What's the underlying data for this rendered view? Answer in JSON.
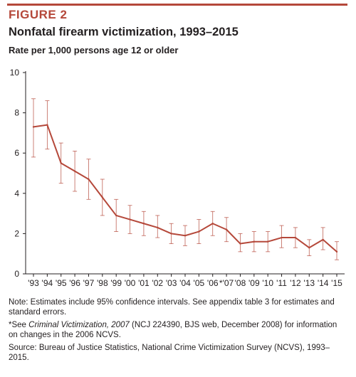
{
  "figure": {
    "label": "FIGURE 2",
    "title": "Nonfatal firearm victimization, 1993–2015",
    "subtitle": "Rate per 1,000 persons age 12 or older"
  },
  "notes": {
    "note": "Note: Estimates include 95% confidence intervals. See appendix table 3 for estimates and standard errors.",
    "see_prefix": "*See ",
    "see_title": "Criminal Victimization, 2007",
    "see_suffix": " (NCJ 224390, BJS web, December 2008) for information on changes in the 2006 NCVS.",
    "source": "Source: Bureau of Justice Statistics, National Crime Victimization Survey (NCVS), 1993–2015."
  },
  "colors": {
    "accent": "#b5483a",
    "series": "#b5483a",
    "axis": "#231f20"
  },
  "chart_data": {
    "type": "line",
    "title": "Nonfatal firearm victimization, 1993–2015",
    "ylabel": "Rate per 1,000 persons age 12 or older",
    "xlabel": "",
    "ylim": [
      0,
      10
    ],
    "yticks": [
      0,
      2,
      4,
      6,
      8,
      10
    ],
    "grid": false,
    "legend": "none",
    "categories": [
      "'93",
      "'94",
      "'95",
      "'96",
      "'97",
      "'98",
      "'99",
      "'00",
      "'01",
      "'02",
      "'03",
      "'04",
      "'05",
      "'06",
      "*'07",
      "'08",
      "'09",
      "'10",
      "'11",
      "'12",
      "'13",
      "'14",
      "'15"
    ],
    "series": [
      {
        "values": [
          7.3,
          7.4,
          5.5,
          5.1,
          4.7,
          3.8,
          2.9,
          2.7,
          2.5,
          2.3,
          2.0,
          1.9,
          2.1,
          2.5,
          2.2,
          1.5,
          1.6,
          1.6,
          1.8,
          1.8,
          1.3,
          1.7,
          1.1
        ],
        "lower": [
          5.8,
          6.2,
          4.5,
          4.1,
          3.7,
          2.9,
          2.1,
          2.0,
          1.9,
          1.8,
          1.5,
          1.4,
          1.5,
          1.9,
          1.6,
          1.1,
          1.1,
          1.1,
          1.3,
          1.3,
          0.9,
          1.2,
          0.7
        ],
        "upper": [
          8.7,
          8.6,
          6.5,
          6.1,
          5.7,
          4.7,
          3.7,
          3.4,
          3.1,
          2.9,
          2.5,
          2.4,
          2.7,
          3.1,
          2.8,
          2.0,
          2.1,
          2.1,
          2.4,
          2.3,
          1.7,
          2.3,
          1.6
        ]
      }
    ]
  }
}
